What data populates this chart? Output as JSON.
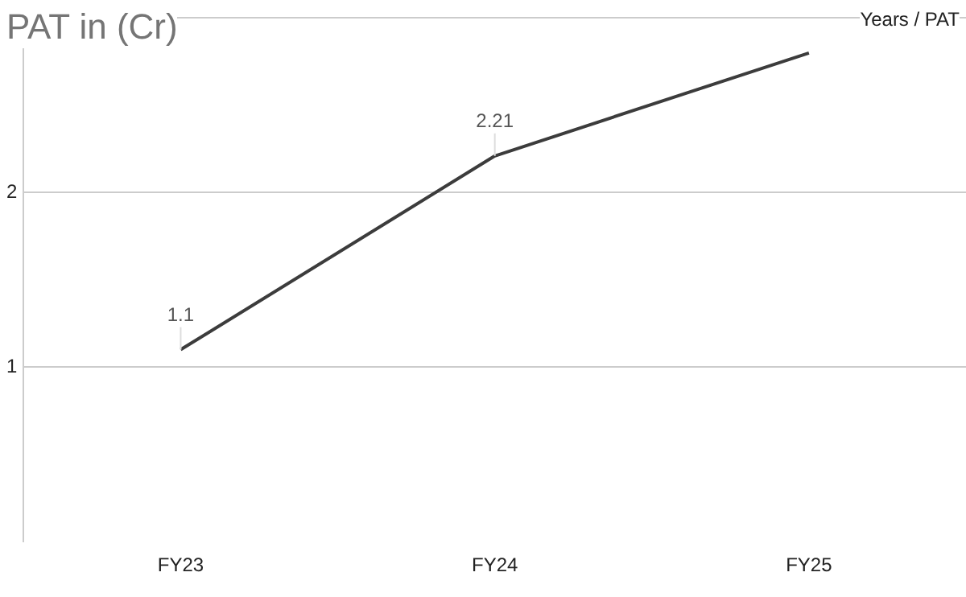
{
  "chart_data": {
    "type": "line",
    "title": "PAT in (Cr)",
    "annotations": [
      "Years / PAT"
    ],
    "categories": [
      "FY23",
      "FY24",
      "FY25"
    ],
    "series": [
      {
        "color": "#3c3c3c",
        "values": [
          1.1,
          2.21,
          2.8
        ],
        "value_labels": [
          "1.1",
          "2.21",
          null
        ]
      }
    ],
    "ylim": [
      0,
      3
    ],
    "yticks": [
      1,
      2,
      {
        "value": 3,
        "label": null
      }
    ],
    "grid": "y",
    "legend": false,
    "marker": "none"
  }
}
